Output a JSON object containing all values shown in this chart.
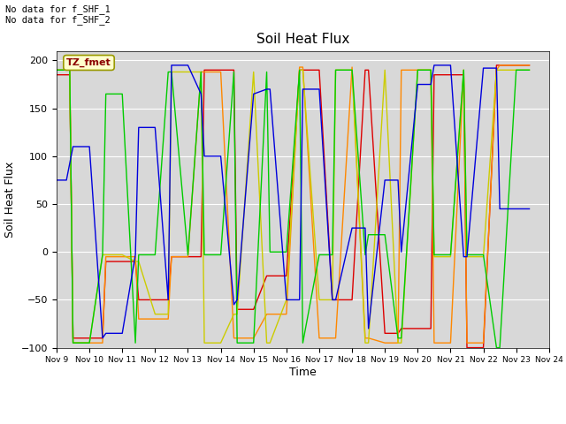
{
  "title": "Soil Heat Flux",
  "ylabel": "Soil Heat Flux",
  "xlabel": "Time",
  "ylim": [
    -100,
    210
  ],
  "annotation_text": "No data for f_SHF_1\nNo data for f_SHF_2",
  "box_label": "TZ_fmet",
  "colors": {
    "SHF1": "#dd0000",
    "SHF2": "#ff8800",
    "SHF3": "#cccc00",
    "SHF4": "#00cc00",
    "SHF5": "#0000dd"
  },
  "x_ticks": [
    9,
    10,
    11,
    12,
    13,
    14,
    15,
    16,
    17,
    18,
    19,
    20,
    21,
    22,
    23,
    24
  ],
  "x_tick_labels": [
    "Nov 9",
    "Nov 10",
    "Nov 11",
    "Nov 12",
    "Nov 13",
    "Nov 14",
    "Nov 15",
    "Nov 16",
    "Nov 17",
    "Nov 18",
    "Nov 19",
    "Nov 20",
    "Nov 21",
    "Nov 22",
    "Nov 23",
    "Nov 24"
  ],
  "series": {
    "SHF1": {
      "x": [
        9.0,
        9.4,
        9.5,
        10.0,
        10.4,
        10.5,
        11.0,
        11.4,
        11.5,
        12.0,
        12.4,
        12.5,
        13.0,
        13.4,
        13.5,
        14.0,
        14.4,
        14.5,
        15.0,
        15.4,
        15.5,
        16.0,
        16.4,
        16.5,
        17.0,
        17.4,
        17.5,
        18.0,
        18.4,
        18.5,
        19.0,
        19.4,
        19.5,
        20.0,
        20.4,
        20.5,
        21.0,
        21.4,
        21.5,
        22.0,
        22.4,
        22.5,
        23.0,
        23.4
      ],
      "y": [
        185,
        185,
        -90,
        -90,
        -90,
        -10,
        -10,
        -10,
        -50,
        -50,
        -50,
        -5,
        -5,
        -5,
        190,
        190,
        190,
        -60,
        -60,
        -25,
        -25,
        -25,
        190,
        190,
        190,
        -50,
        -50,
        -50,
        190,
        190,
        -85,
        -85,
        -80,
        -80,
        -80,
        185,
        185,
        185,
        -100,
        -100,
        195,
        195,
        195,
        195
      ]
    },
    "SHF2": {
      "x": [
        9.0,
        9.4,
        9.5,
        10.0,
        10.4,
        10.5,
        11.0,
        11.4,
        11.5,
        12.0,
        12.4,
        12.5,
        13.0,
        13.4,
        13.5,
        14.0,
        14.4,
        14.5,
        15.0,
        15.4,
        15.5,
        16.0,
        16.4,
        16.5,
        17.0,
        17.4,
        17.5,
        18.0,
        18.4,
        18.5,
        19.0,
        19.4,
        19.5,
        20.0,
        20.4,
        20.5,
        21.0,
        21.4,
        21.5,
        22.0,
        22.4,
        22.5,
        23.0,
        23.4
      ],
      "y": [
        190,
        190,
        -95,
        -95,
        -95,
        -5,
        -5,
        -5,
        -70,
        -70,
        -70,
        -5,
        -5,
        188,
        188,
        188,
        -90,
        -90,
        -90,
        -65,
        -65,
        -65,
        193,
        193,
        -90,
        -90,
        -90,
        193,
        -90,
        -90,
        -95,
        -95,
        190,
        190,
        190,
        -95,
        -95,
        190,
        -95,
        -95,
        190,
        195,
        195,
        195
      ]
    },
    "SHF3": {
      "x": [
        9.0,
        9.4,
        9.5,
        10.0,
        10.4,
        10.5,
        11.0,
        11.4,
        11.5,
        12.0,
        12.4,
        12.5,
        13.0,
        13.4,
        13.5,
        14.0,
        14.4,
        14.5,
        15.0,
        15.4,
        15.5,
        16.0,
        16.4,
        16.5,
        17.0,
        17.4,
        17.5,
        18.0,
        18.4,
        18.5,
        19.0,
        19.4,
        19.5,
        20.0,
        20.4,
        20.5,
        21.0,
        21.4,
        21.5,
        22.0,
        22.4,
        22.5,
        23.0,
        23.4
      ],
      "y": [
        190,
        190,
        -95,
        -95,
        -3,
        -3,
        -3,
        -10,
        -10,
        -65,
        -65,
        188,
        188,
        188,
        -95,
        -95,
        -65,
        -65,
        188,
        -95,
        -95,
        -50,
        190,
        190,
        -50,
        -50,
        190,
        190,
        -95,
        -95,
        190,
        -95,
        -95,
        190,
        190,
        -5,
        -5,
        190,
        -5,
        -5,
        190,
        190,
        190,
        190
      ]
    },
    "SHF4": {
      "x": [
        9.0,
        9.4,
        9.5,
        10.0,
        10.4,
        10.5,
        11.0,
        11.4,
        11.5,
        12.0,
        12.4,
        12.5,
        13.0,
        13.4,
        13.5,
        14.0,
        14.4,
        14.5,
        15.0,
        15.4,
        15.5,
        16.0,
        16.4,
        16.5,
        17.0,
        17.4,
        17.5,
        18.0,
        18.4,
        18.5,
        19.0,
        19.4,
        19.5,
        20.0,
        20.4,
        20.5,
        21.0,
        21.4,
        21.5,
        22.0,
        22.4,
        22.5,
        23.0,
        23.4
      ],
      "y": [
        190,
        190,
        -95,
        -95,
        -3,
        165,
        165,
        -95,
        -3,
        -3,
        188,
        188,
        -3,
        188,
        -3,
        -3,
        188,
        -95,
        -95,
        188,
        0,
        0,
        190,
        -95,
        -3,
        -3,
        190,
        190,
        -3,
        18,
        18,
        -90,
        -90,
        190,
        190,
        -3,
        -3,
        190,
        -3,
        -3,
        -100,
        -100,
        190,
        190
      ]
    },
    "SHF5": {
      "x": [
        9.0,
        9.3,
        9.5,
        10.0,
        10.4,
        10.5,
        11.0,
        11.4,
        11.5,
        12.0,
        12.4,
        12.5,
        13.0,
        13.4,
        13.5,
        14.0,
        14.4,
        14.5,
        15.0,
        15.4,
        15.5,
        16.0,
        16.4,
        16.5,
        17.0,
        17.4,
        17.5,
        18.0,
        18.4,
        18.5,
        19.0,
        19.4,
        19.5,
        20.0,
        20.4,
        20.5,
        21.0,
        21.4,
        21.5,
        22.0,
        22.4,
        22.5,
        23.0,
        23.4
      ],
      "y": [
        75,
        75,
        110,
        110,
        -90,
        -85,
        -85,
        -3,
        130,
        130,
        -50,
        195,
        195,
        165,
        100,
        100,
        -55,
        -50,
        165,
        170,
        170,
        -50,
        -50,
        170,
        170,
        -50,
        -50,
        25,
        25,
        -80,
        75,
        75,
        0,
        175,
        175,
        195,
        195,
        -5,
        -5,
        192,
        192,
        45,
        45,
        45
      ]
    }
  }
}
